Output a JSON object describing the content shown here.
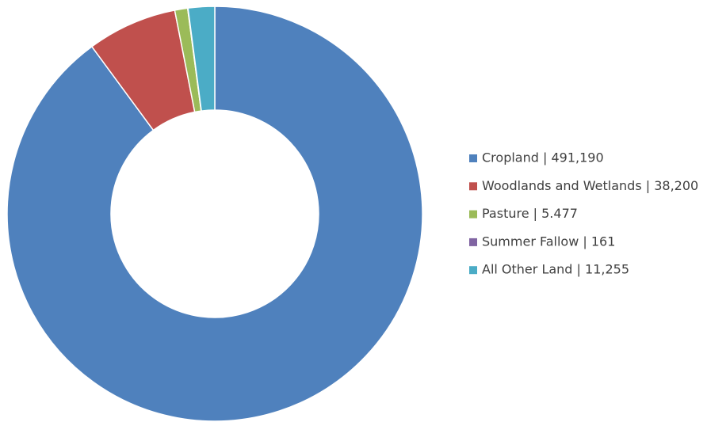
{
  "chart_data": {
    "type": "donut",
    "categories": [
      "Cropland | 491,190",
      "Woodlands and Wetlands | 38,200",
      "Pasture | 5.477",
      "Summer Fallow | 161",
      "All Other Land | 11,255"
    ],
    "values": [
      491190,
      38200,
      5477,
      161,
      11255
    ],
    "colors": [
      "#4f81bd",
      "#c0504d",
      "#9bbb59",
      "#8064a2",
      "#4bacc6"
    ],
    "legend": "right"
  }
}
